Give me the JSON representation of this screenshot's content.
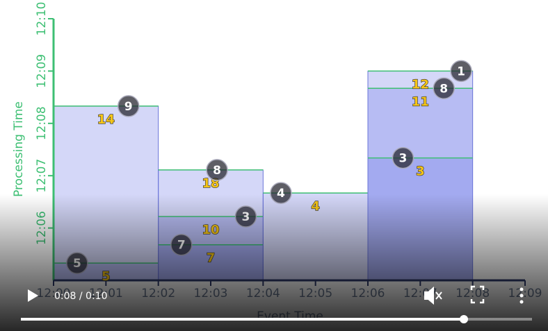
{
  "chart_data": {
    "type": "windows",
    "xlabel": "Event Time",
    "ylabel": "Processing Time",
    "xlim": [
      0,
      9
    ],
    "ylim": [
      5,
      10
    ],
    "xticks": [
      {
        "value": 0,
        "label": "12:00"
      },
      {
        "value": 1,
        "label": "12:01"
      },
      {
        "value": 2,
        "label": "12:02"
      },
      {
        "value": 3,
        "label": "12:03"
      },
      {
        "value": 4,
        "label": "12:04"
      },
      {
        "value": 5,
        "label": "12:05"
      },
      {
        "value": 6,
        "label": "12:06"
      },
      {
        "value": 7,
        "label": "12:07"
      },
      {
        "value": 8,
        "label": "12:08"
      },
      {
        "value": 9,
        "label": "12:09"
      }
    ],
    "yticks": [
      {
        "value": 6,
        "label": "12:06"
      },
      {
        "value": 7,
        "label": "12:07"
      },
      {
        "value": 8,
        "label": "12:08"
      },
      {
        "value": 9,
        "label": "12:09"
      },
      {
        "value": 10,
        "label": "12:10"
      }
    ],
    "windows": [
      {
        "start": 0,
        "end": 2,
        "panes": [
          {
            "top": 5.33,
            "sum": 5
          },
          {
            "top": 8.33,
            "sum": 14
          }
        ]
      },
      {
        "start": 2,
        "end": 4,
        "panes": [
          {
            "top": 5.68,
            "sum": 7
          },
          {
            "top": 6.22,
            "sum": 10
          },
          {
            "top": 7.11,
            "sum": 18
          }
        ]
      },
      {
        "start": 4,
        "end": 6,
        "panes": [
          {
            "top": 6.67,
            "sum": 4
          }
        ]
      },
      {
        "start": 6,
        "end": 8,
        "panes": [
          {
            "top": 7.34,
            "sum": 3
          },
          {
            "top": 8.67,
            "sum": 11
          },
          {
            "top": 9.0,
            "sum": 12
          }
        ]
      }
    ],
    "points": {
      "x": [
        1.43,
        0.45,
        3.12,
        3.67,
        2.44,
        4.34,
        7.78,
        7.45,
        6.67
      ],
      "y": [
        8.33,
        5.33,
        7.11,
        6.22,
        5.68,
        6.67,
        9.0,
        8.67,
        7.34
      ],
      "labels": [
        9,
        5,
        8,
        3,
        7,
        4,
        1,
        8,
        3
      ]
    }
  },
  "player": {
    "time": "0:08 / 0:10"
  }
}
